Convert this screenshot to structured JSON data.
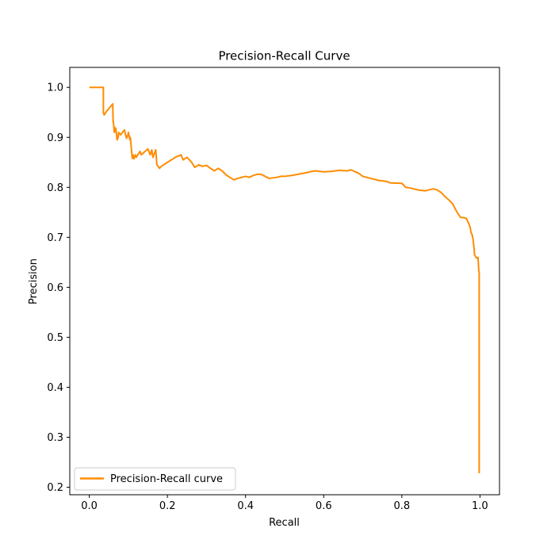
{
  "chart_data": {
    "type": "line",
    "title": "Precision-Recall Curve",
    "xlabel": "Recall",
    "ylabel": "Precision",
    "xlim": [
      -0.05,
      1.05
    ],
    "ylim": [
      0.185,
      1.04
    ],
    "x_ticks": [
      "0.0",
      "0.2",
      "0.4",
      "0.6",
      "0.8",
      "1.0"
    ],
    "y_ticks": [
      "0.2",
      "0.3",
      "0.4",
      "0.5",
      "0.6",
      "0.7",
      "0.8",
      "0.9",
      "1.0"
    ],
    "grid": false,
    "legend": {
      "position": "lower-left",
      "entries": [
        "Precision-Recall curve"
      ]
    },
    "series": [
      {
        "name": "Precision-Recall curve",
        "color": "#ff8c00",
        "x": [
          0.0,
          0.036,
          0.036,
          0.038,
          0.045,
          0.06,
          0.061,
          0.061,
          0.064,
          0.065,
          0.066,
          0.068,
          0.071,
          0.074,
          0.075,
          0.08,
          0.09,
          0.095,
          0.099,
          0.1,
          0.104,
          0.105,
          0.11,
          0.112,
          0.114,
          0.118,
          0.12,
          0.13,
          0.133,
          0.14,
          0.15,
          0.156,
          0.16,
          0.163,
          0.17,
          0.173,
          0.18,
          0.181,
          0.19,
          0.2,
          0.21,
          0.22,
          0.235,
          0.24,
          0.25,
          0.26,
          0.262,
          0.27,
          0.28,
          0.29,
          0.3,
          0.31,
          0.32,
          0.33,
          0.34,
          0.35,
          0.36,
          0.37,
          0.38,
          0.39,
          0.4,
          0.41,
          0.42,
          0.43,
          0.44,
          0.45,
          0.46,
          0.47,
          0.48,
          0.49,
          0.5,
          0.52,
          0.54,
          0.56,
          0.57,
          0.58,
          0.6,
          0.62,
          0.64,
          0.66,
          0.67,
          0.69,
          0.7,
          0.72,
          0.74,
          0.76,
          0.77,
          0.8,
          0.81,
          0.82,
          0.84,
          0.86,
          0.88,
          0.89,
          0.9,
          0.91,
          0.92,
          0.93,
          0.94,
          0.95,
          0.96,
          0.965,
          0.97,
          0.975,
          0.977,
          0.98,
          0.982,
          0.985,
          0.986,
          0.99,
          0.993,
          0.995,
          0.997,
          0.998,
          0.998
        ],
        "y": [
          1.0,
          1.0,
          0.95,
          0.945,
          0.953,
          0.967,
          0.93,
          0.936,
          0.91,
          0.92,
          0.912,
          0.918,
          0.895,
          0.9,
          0.91,
          0.905,
          0.915,
          0.898,
          0.905,
          0.91,
          0.895,
          0.9,
          0.858,
          0.865,
          0.857,
          0.865,
          0.86,
          0.872,
          0.865,
          0.87,
          0.877,
          0.865,
          0.875,
          0.86,
          0.875,
          0.845,
          0.838,
          0.84,
          0.845,
          0.85,
          0.855,
          0.86,
          0.865,
          0.855,
          0.86,
          0.852,
          0.85,
          0.84,
          0.845,
          0.842,
          0.844,
          0.838,
          0.833,
          0.838,
          0.833,
          0.825,
          0.82,
          0.815,
          0.818,
          0.82,
          0.822,
          0.82,
          0.824,
          0.826,
          0.826,
          0.822,
          0.818,
          0.819,
          0.82,
          0.822,
          0.822,
          0.824,
          0.827,
          0.83,
          0.832,
          0.833,
          0.831,
          0.832,
          0.834,
          0.833,
          0.835,
          0.828,
          0.822,
          0.818,
          0.814,
          0.812,
          0.809,
          0.808,
          0.8,
          0.799,
          0.795,
          0.793,
          0.797,
          0.795,
          0.79,
          0.782,
          0.775,
          0.767,
          0.752,
          0.74,
          0.739,
          0.738,
          0.73,
          0.72,
          0.71,
          0.705,
          0.697,
          0.678,
          0.665,
          0.66,
          0.658,
          0.66,
          0.633,
          0.63,
          0.228
        ]
      }
    ]
  }
}
